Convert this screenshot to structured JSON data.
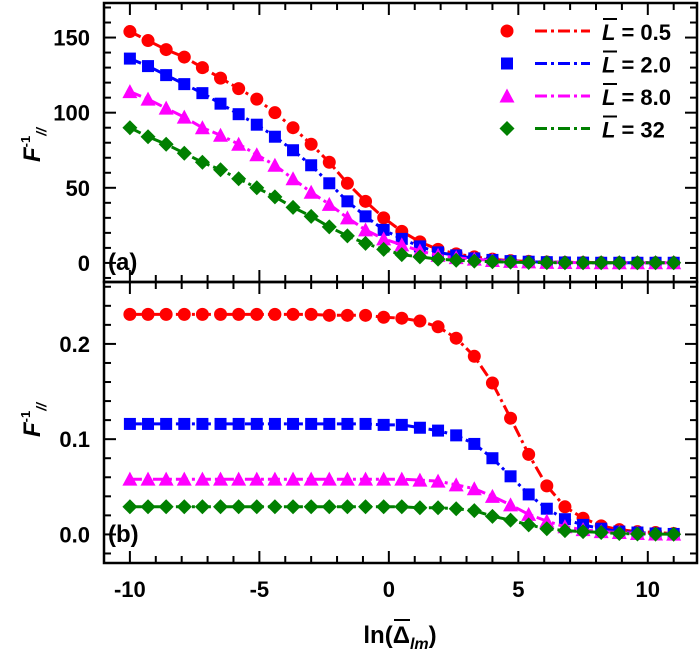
{
  "chart_data": [
    {
      "type": "line",
      "panel_label": "(a)",
      "ylabel": {
        "base": "F",
        "sup": "-1",
        "sub": "//"
      },
      "xlabel": "",
      "xlim": [
        -11,
        11.9
      ],
      "ylim": [
        -12.7,
        173
      ],
      "x_ticks": [
        -10,
        -5,
        0,
        5,
        10
      ],
      "y_ticks": [
        0,
        50,
        100,
        150
      ],
      "y_tick_labels": [
        "0",
        "50",
        "100",
        "150"
      ],
      "grid": false,
      "legend_placement": "top-right",
      "x": [
        -10,
        -9.3,
        -8.6,
        -7.9,
        -7.2,
        -6.5,
        -5.8,
        -5.1,
        -4.4,
        -3.7,
        -3,
        -2.3,
        -1.6,
        -0.9,
        -0.2,
        0.5,
        1.2,
        1.9,
        2.6,
        3.3,
        4,
        4.7,
        5.4,
        6.1,
        6.8,
        7.5,
        8.2,
        8.9,
        9.6,
        10.3,
        11
      ],
      "series": [
        {
          "name": "L = 0.5",
          "color": "#ff0000",
          "marker": "circle",
          "values": [
            154,
            148,
            142,
            137,
            130,
            123,
            116,
            109,
            100,
            90,
            79,
            67,
            53,
            41,
            30,
            21,
            14,
            9,
            6,
            4,
            2.5,
            1.5,
            1,
            0.6,
            0.4,
            0.3,
            0.2,
            0.1,
            0.1,
            0.1,
            0.1
          ]
        },
        {
          "name": "L = 2.0",
          "color": "#0000ff",
          "marker": "square",
          "values": [
            136,
            131,
            125,
            119,
            113,
            106,
            99,
            92,
            84,
            75,
            65,
            53,
            41,
            31,
            22,
            16,
            11,
            7,
            5,
            3,
            2,
            1.2,
            0.8,
            0.5,
            0.3,
            0.2,
            0.1,
            0.1,
            0.1,
            0.1,
            0.1
          ]
        },
        {
          "name": "L = 8.0",
          "color": "#ff00ff",
          "marker": "triangle",
          "values": [
            114,
            109,
            103,
            97,
            90,
            85,
            79,
            72,
            65,
            56,
            47,
            39,
            30,
            22,
            16,
            12,
            8,
            5,
            3.5,
            2.5,
            1.6,
            1,
            0.7,
            0.4,
            0.3,
            0.2,
            0.1,
            0.1,
            0.1,
            0.1,
            0.1
          ]
        },
        {
          "name": "L = 32",
          "color": "#008000",
          "marker": "diamond",
          "values": [
            90,
            84,
            79,
            73,
            67,
            62,
            56,
            50,
            44,
            37,
            31,
            24,
            18,
            13,
            9,
            5.5,
            4,
            2.5,
            1.8,
            1.2,
            0.8,
            0.5,
            0.3,
            0.2,
            0.1,
            0.1,
            0.1,
            0.1,
            0.1,
            0.1,
            0.1
          ]
        }
      ]
    },
    {
      "type": "line",
      "panel_label": "(b)",
      "ylabel": {
        "base": "F",
        "sup": "-1",
        "sub": "//"
      },
      "xlabel": {
        "text": "ln(",
        "symbol": "Δ",
        "sub": "lm",
        "close": ")"
      },
      "xlim": [
        -11,
        11.9
      ],
      "ylim": [
        -0.03,
        0.265
      ],
      "x_ticks": [
        -10,
        -5,
        0,
        5,
        10
      ],
      "x_tick_labels": [
        "-10",
        "-5",
        "0",
        "5",
        "10"
      ],
      "y_ticks": [
        0,
        0.1,
        0.2
      ],
      "y_tick_labels": [
        "0.0",
        "0.1",
        "0.2"
      ],
      "grid": false,
      "x": [
        -10,
        -9.3,
        -8.6,
        -7.9,
        -7.2,
        -6.5,
        -5.8,
        -5.1,
        -4.4,
        -3.7,
        -3,
        -2.3,
        -1.6,
        -0.9,
        -0.2,
        0.5,
        1.2,
        1.9,
        2.6,
        3.3,
        4,
        4.7,
        5.4,
        6.1,
        6.8,
        7.5,
        8.2,
        8.9,
        9.6,
        10.3,
        11
      ],
      "series": [
        {
          "color": "#ff0000",
          "marker": "circle",
          "values": [
            0.231,
            0.231,
            0.231,
            0.231,
            0.231,
            0.231,
            0.231,
            0.231,
            0.231,
            0.231,
            0.231,
            0.23,
            0.23,
            0.23,
            0.228,
            0.227,
            0.224,
            0.218,
            0.206,
            0.187,
            0.159,
            0.122,
            0.084,
            0.051,
            0.029,
            0.017,
            0.009,
            0.005,
            0.003,
            0.002,
            0.001
          ]
        },
        {
          "color": "#0000ff",
          "marker": "square",
          "values": [
            0.116,
            0.116,
            0.116,
            0.116,
            0.116,
            0.116,
            0.116,
            0.116,
            0.116,
            0.116,
            0.116,
            0.116,
            0.116,
            0.116,
            0.115,
            0.115,
            0.112,
            0.109,
            0.104,
            0.095,
            0.08,
            0.061,
            0.042,
            0.027,
            0.016,
            0.01,
            0.006,
            0.003,
            0.002,
            0.001,
            0.0005
          ]
        },
        {
          "color": "#ff00ff",
          "marker": "triangle",
          "values": [
            0.058,
            0.058,
            0.058,
            0.058,
            0.058,
            0.058,
            0.058,
            0.058,
            0.058,
            0.058,
            0.058,
            0.058,
            0.058,
            0.058,
            0.058,
            0.058,
            0.057,
            0.056,
            0.052,
            0.048,
            0.04,
            0.031,
            0.021,
            0.014,
            0.008,
            0.005,
            0.003,
            0.002,
            0.001,
            0.0005,
            0.0003
          ]
        },
        {
          "color": "#008000",
          "marker": "diamond",
          "values": [
            0.029,
            0.029,
            0.029,
            0.029,
            0.029,
            0.029,
            0.029,
            0.029,
            0.029,
            0.029,
            0.029,
            0.029,
            0.029,
            0.029,
            0.029,
            0.029,
            0.028,
            0.028,
            0.027,
            0.025,
            0.019,
            0.015,
            0.01,
            0.006,
            0.004,
            0.003,
            0.002,
            0.001,
            0.0005,
            0.0003,
            0.0002
          ]
        }
      ]
    }
  ],
  "legend": [
    {
      "symbol": "L",
      "eq": "= 0.5"
    },
    {
      "symbol": "L",
      "eq": "= 2.0"
    },
    {
      "symbol": "L",
      "eq": "= 8.0"
    },
    {
      "symbol": "L",
      "eq": "= 32"
    }
  ]
}
